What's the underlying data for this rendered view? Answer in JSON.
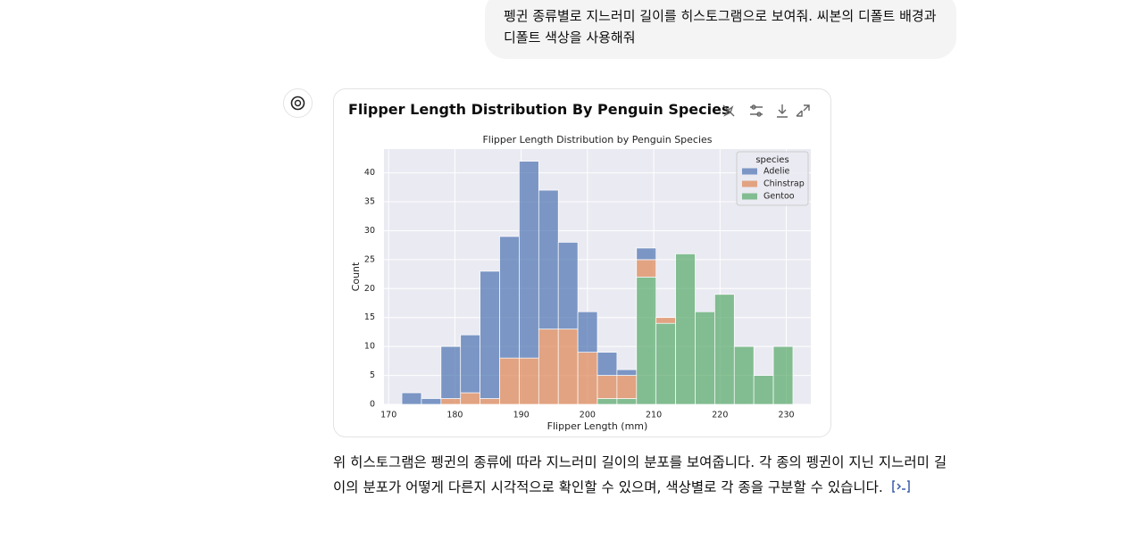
{
  "user_message": "펭귄 종류별로 지느러미 길이를 히스토그램으로 보여줘. 씨본의 디폴트 배경과 디폴트 색상을 사용해줘",
  "card_title": "Flipper Length Distribution By Penguin Species",
  "response_text": "위 히스토그램은 펭귄의 종류에 따라 지느러미 길이의 분포를 보여줍니다. 각 종의 펭귄이 지닌 지느러미 길이의 분포가 어떻게 다른지 시각적으로 확인할 수 있으며, 색상별로 각 종을 구분할 수 있습니다.",
  "chart_data": {
    "type": "histogram",
    "stacked": true,
    "title": "Flipper Length Distribution by Penguin Species",
    "x_label": "Flipper Length (mm)",
    "y_label": "Count",
    "legend_title": "species",
    "legend": "upper right",
    "grid": true,
    "background": "#eaeaf2",
    "bins": [
      172,
      174.95,
      177.9,
      180.85,
      183.8,
      186.75,
      189.7,
      192.65,
      195.6,
      198.55,
      201.5,
      204.45,
      207.4,
      210.35,
      213.3,
      216.25,
      219.2,
      222.15,
      225.1,
      228.05,
      231
    ],
    "series": [
      {
        "name": "Adelie",
        "color": "#4c72b0",
        "values": [
          2,
          1,
          9,
          10,
          22,
          21,
          34,
          24,
          15,
          7,
          4,
          1,
          2,
          0,
          0,
          0,
          0,
          0,
          0,
          0
        ]
      },
      {
        "name": "Chinstrap",
        "color": "#dd8452",
        "values": [
          0,
          0,
          1,
          2,
          1,
          8,
          8,
          13,
          13,
          9,
          4,
          4,
          3,
          1,
          0,
          0,
          0,
          0,
          0,
          0
        ]
      },
      {
        "name": "Gentoo",
        "color": "#55a868",
        "values": [
          0,
          0,
          0,
          0,
          0,
          0,
          0,
          0,
          0,
          0,
          1,
          1,
          22,
          14,
          26,
          16,
          19,
          10,
          5,
          10
        ]
      }
    ],
    "xlim": [
      169.3,
      233.7
    ],
    "ylim": [
      0,
      44.1
    ],
    "xticks": [
      170,
      180,
      190,
      200,
      210,
      220,
      230
    ],
    "yticks": [
      0,
      5,
      10,
      15,
      20,
      25,
      30,
      35,
      40
    ]
  }
}
